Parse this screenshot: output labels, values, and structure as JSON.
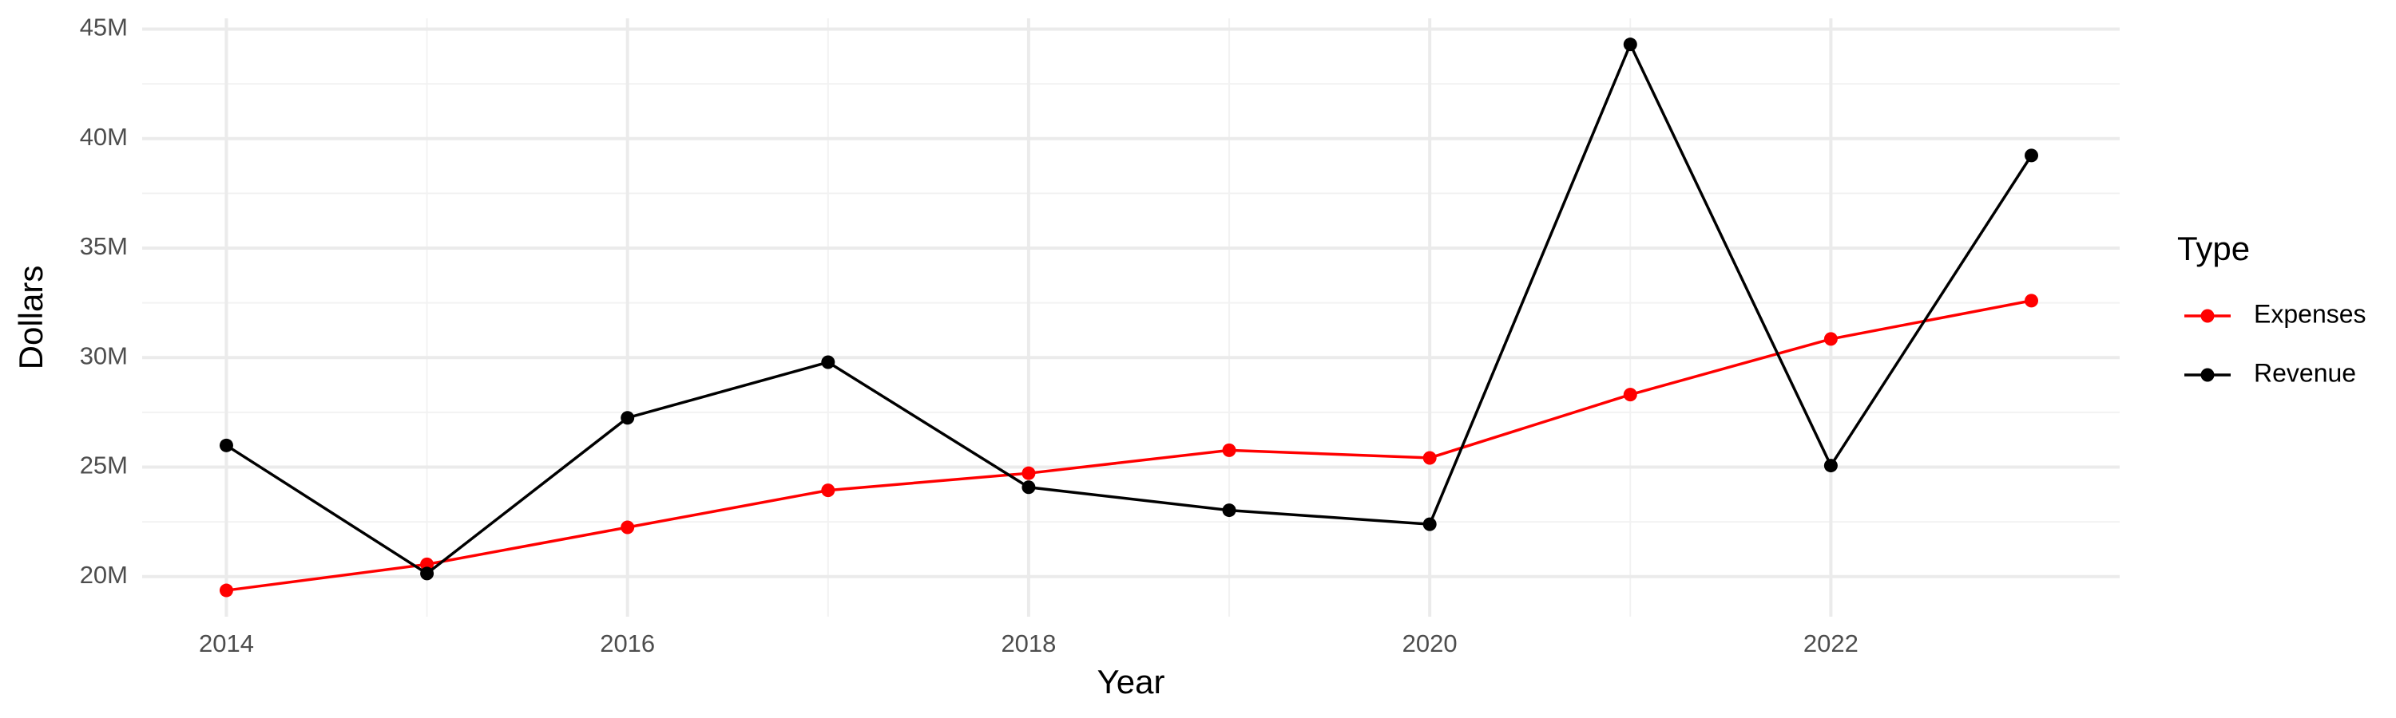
{
  "chart_data": {
    "type": "line",
    "x_label": "Year",
    "y_label": "Dollars",
    "legend_title": "Type",
    "x": [
      2014,
      2015,
      2016,
      2017,
      2018,
      2019,
      2020,
      2021,
      2022,
      2023
    ],
    "series": [
      {
        "name": "Expenses",
        "color": "#ff0000",
        "values": [
          19370000,
          20560000,
          22250000,
          23940000,
          24720000,
          25770000,
          25420000,
          28310000,
          30850000,
          32600000
        ]
      },
      {
        "name": "Revenue",
        "color": "#000000",
        "values": [
          25990000,
          20140000,
          27250000,
          29790000,
          24080000,
          23030000,
          22390000,
          44300000,
          25070000,
          39230000
        ]
      }
    ],
    "xlim": [
      2013.58,
      2023.44
    ],
    "xticks": [
      2014,
      2016,
      2018,
      2020,
      2022
    ],
    "ylim": [
      18170000,
      45490000
    ],
    "yticks": [
      {
        "value": 20000000,
        "label": "20M"
      },
      {
        "value": 25000000,
        "label": "25M"
      },
      {
        "value": 30000000,
        "label": "30M"
      },
      {
        "value": 35000000,
        "label": "35M"
      },
      {
        "value": 40000000,
        "label": "40M"
      },
      {
        "value": 45000000,
        "label": "45M"
      }
    ],
    "grid": true,
    "legend_position": "right"
  }
}
